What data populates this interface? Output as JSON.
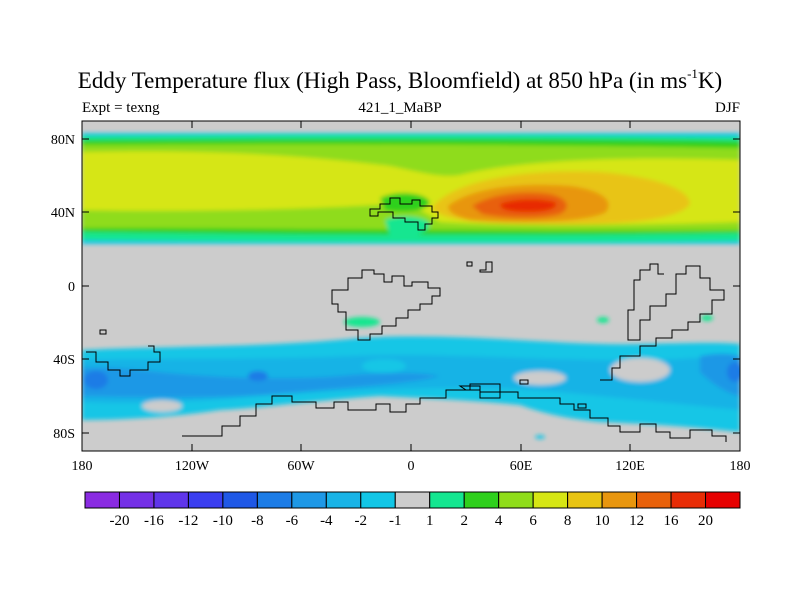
{
  "title": {
    "main": "Eddy Temperature flux (High Pass, Bloomfield) at 850 hPa (in ms",
    "superscript": "-1",
    "suffix": "K)"
  },
  "subtitle": {
    "left": "Expt = texng",
    "center": "421_1_MaBP",
    "right": "DJF"
  },
  "chart_data": {
    "type": "heatmap",
    "lat_ticks": [
      "80N",
      "40N",
      "0",
      "40S",
      "80S"
    ],
    "lon_ticks": [
      "180",
      "120W",
      "60W",
      "0",
      "60E",
      "120E",
      "180"
    ],
    "colorbar_labels": [
      "-20",
      "-16",
      "-12",
      "-10",
      "-8",
      "-6",
      "-4",
      "-2",
      "-1",
      "1",
      "2",
      "4",
      "6",
      "8",
      "10",
      "12",
      "16",
      "20"
    ],
    "colorbar_colors": [
      "#8a2be2",
      "#7430e6",
      "#5f35ea",
      "#3a3ef0",
      "#1f58e6",
      "#1c7ce6",
      "#1e98e6",
      "#19b3e6",
      "#12c6e6",
      "#cccccc",
      "#14e690",
      "#2fd01c",
      "#8fdc1a",
      "#d6e614",
      "#e8c412",
      "#e8960e",
      "#e8610a",
      "#e82c06",
      "#e60000"
    ],
    "contour_levels": [
      -20,
      -16,
      -12,
      -10,
      -8,
      -6,
      -4,
      -2,
      -1,
      1,
      2,
      4,
      6,
      8,
      10,
      12,
      16,
      20
    ]
  }
}
